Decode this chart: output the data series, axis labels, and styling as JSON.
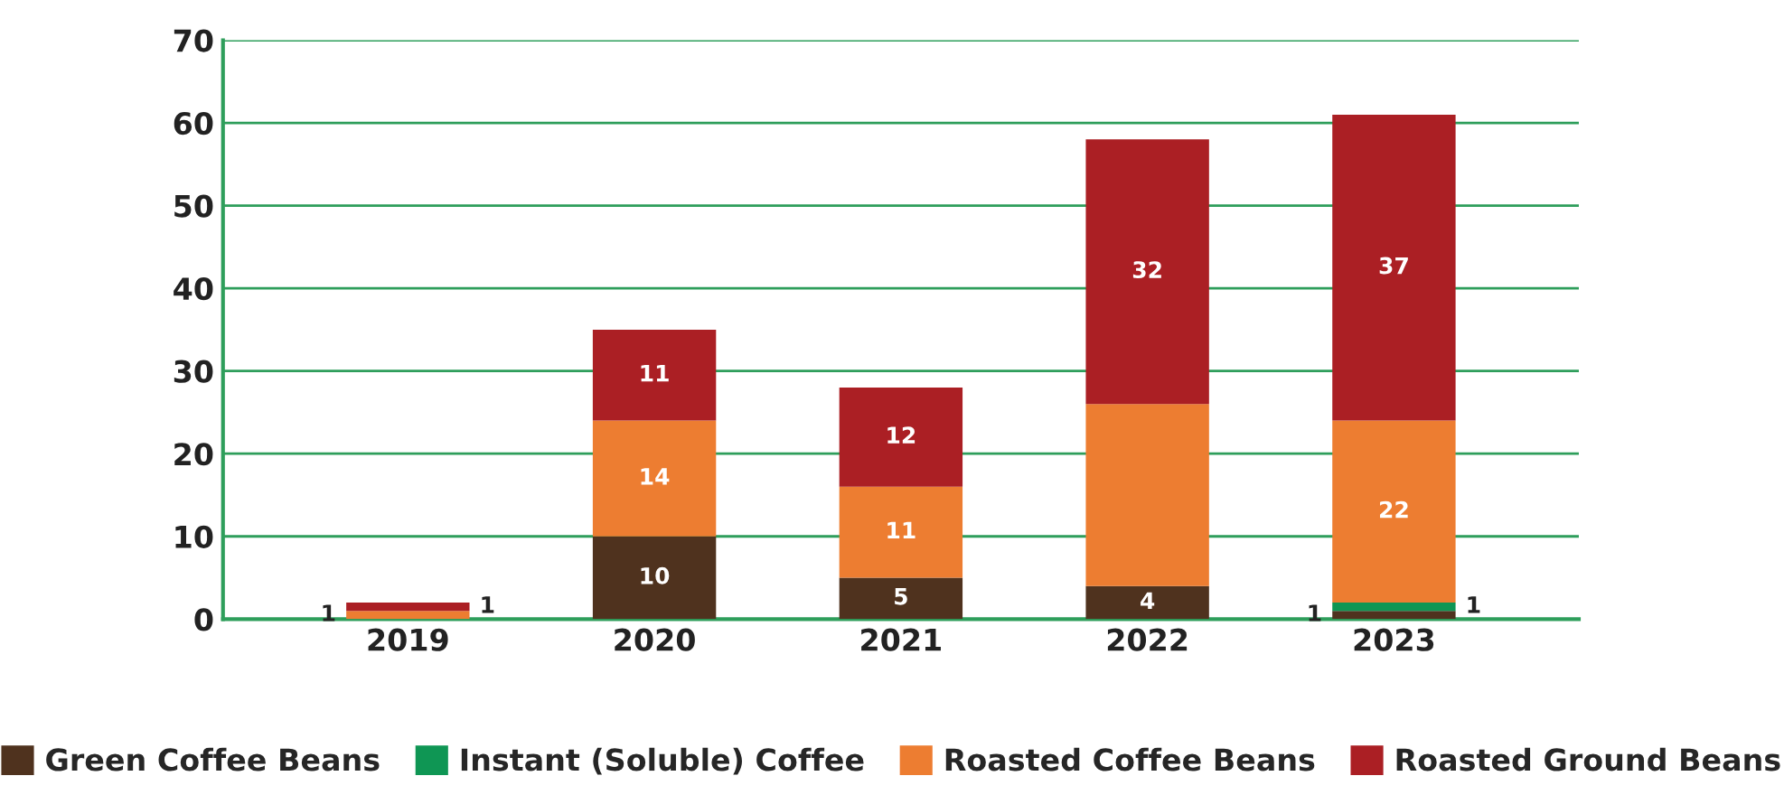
{
  "chart_data": {
    "type": "bar",
    "stacked": true,
    "categories": [
      "2019",
      "2020",
      "2021",
      "2022",
      "2023"
    ],
    "series": [
      {
        "name": "Green Coffee Beans",
        "color": "#4f321e",
        "values": [
          0,
          10,
          5,
          4,
          1
        ],
        "value_labels": [
          null,
          "10",
          "5",
          "4",
          "1"
        ]
      },
      {
        "name": "Instant (Soluble) Coffee",
        "color": "#0f9654",
        "values": [
          0,
          0,
          0,
          0,
          1
        ],
        "value_labels": [
          null,
          null,
          null,
          null,
          "1"
        ]
      },
      {
        "name": "Roasted Coffee Beans",
        "color": "#ed7d31",
        "values": [
          1,
          14,
          11,
          22,
          22
        ],
        "value_labels": [
          "1",
          "14",
          "11",
          null,
          "22"
        ]
      },
      {
        "name": "Roasted Ground Beans",
        "color": "#ab1f24",
        "values": [
          1,
          11,
          12,
          32,
          37
        ],
        "value_labels": [
          "1",
          "11",
          "12",
          "32",
          "37"
        ]
      }
    ],
    "ylim": [
      0,
      70
    ],
    "yticks": [
      0,
      10,
      20,
      30,
      40,
      50,
      60,
      70
    ],
    "grid": "y",
    "legend": "bottom"
  }
}
